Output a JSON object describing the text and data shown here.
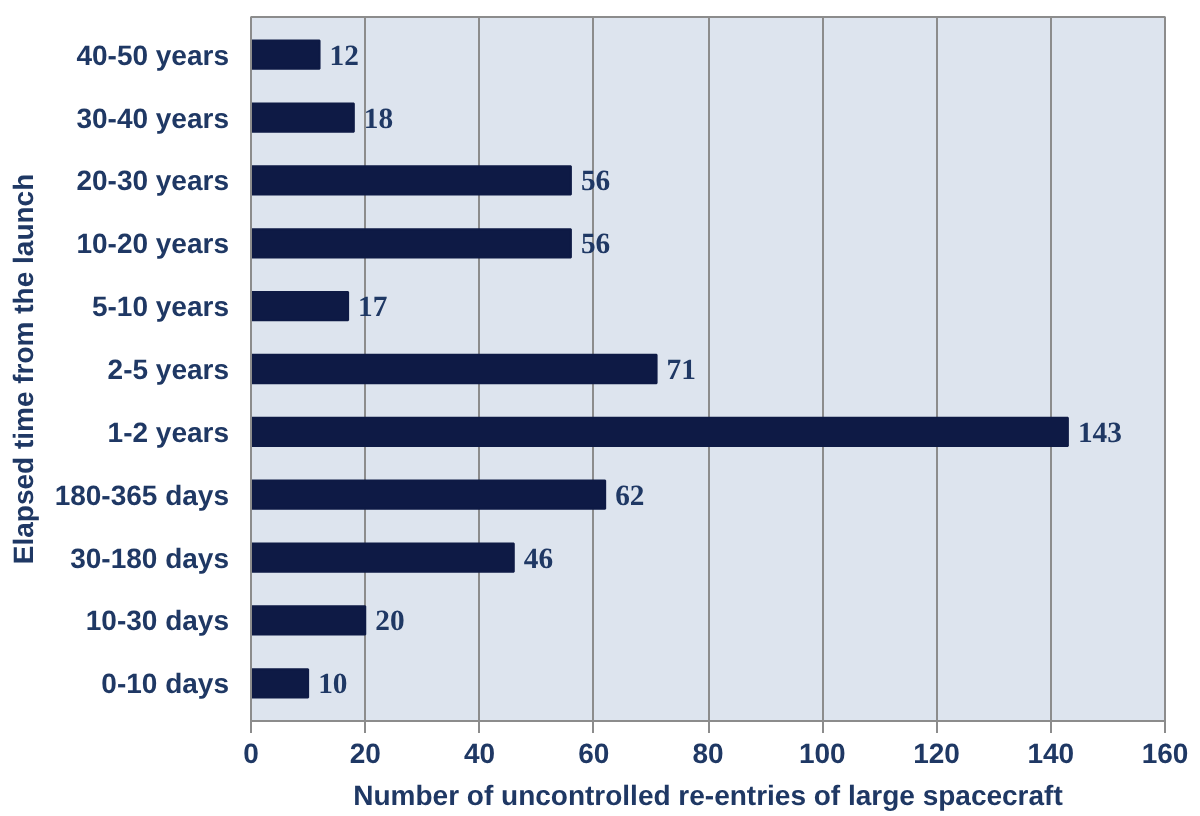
{
  "chart_data": {
    "type": "bar",
    "orientation": "horizontal",
    "xlabel": "Number of uncontrolled re-entries of large spacecraft",
    "ylabel": "Elapsed time from the launch",
    "categories": [
      "40-50 years",
      "30-40 years",
      "20-30 years",
      "10-20 years",
      "5-10 years",
      "2-5 years",
      "1-2 years",
      "180-365 days",
      "30-180 days",
      "10-30 days",
      "0-10 days"
    ],
    "values": [
      12,
      18,
      56,
      56,
      17,
      71,
      143,
      62,
      46,
      20,
      10
    ],
    "color": "#0e1a45",
    "xlim": [
      0,
      160
    ],
    "xticks": [
      0,
      20,
      40,
      60,
      80,
      100,
      120,
      140,
      160
    ],
    "grid": "x",
    "data_labels": true
  }
}
